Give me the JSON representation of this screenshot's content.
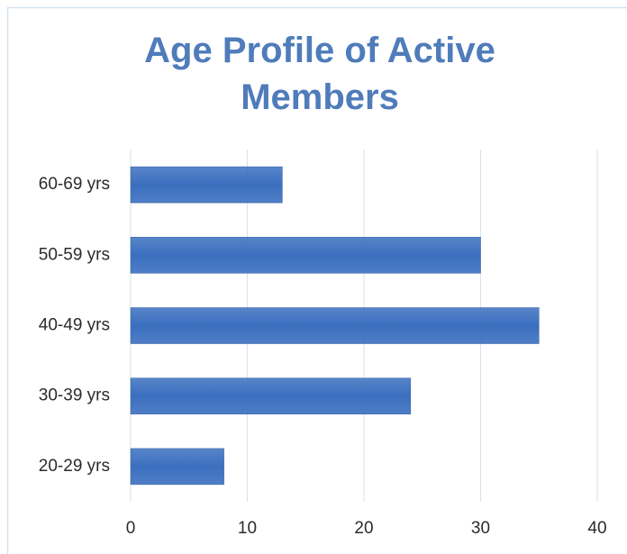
{
  "chart_data": {
    "type": "bar",
    "orientation": "horizontal",
    "title": "Age Profile of Active Members",
    "categories": [
      "20-29 yrs",
      "30-39 yrs",
      "40-49 yrs",
      "50-59 yrs",
      "60-69 yrs"
    ],
    "values": [
      8,
      24,
      35,
      30,
      13
    ],
    "color": "#3b6fbf",
    "xlim": [
      0,
      40
    ],
    "xticks": [
      0,
      10,
      20,
      30,
      40
    ],
    "grid": true
  }
}
